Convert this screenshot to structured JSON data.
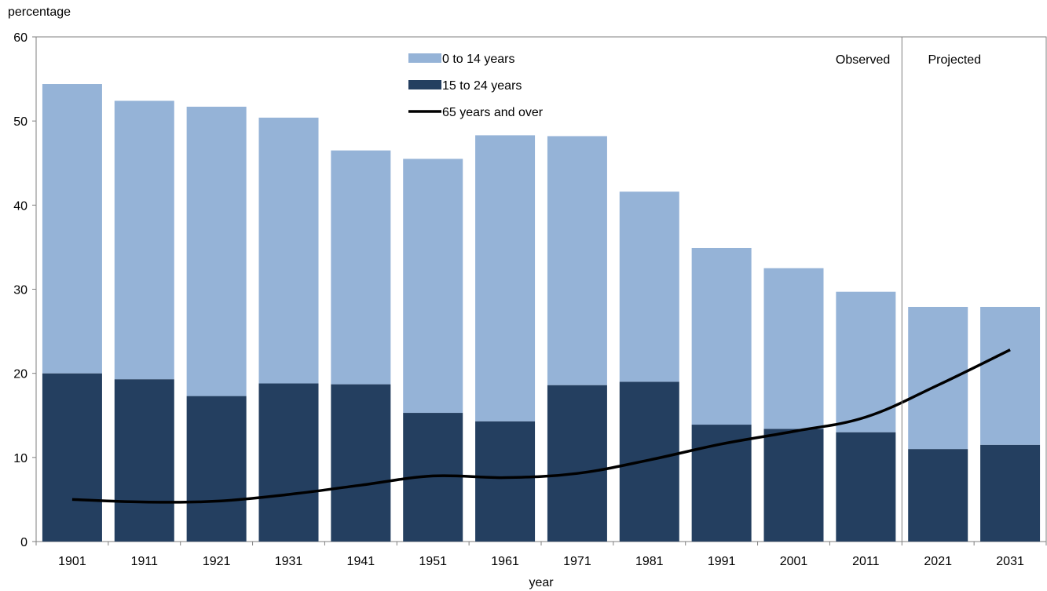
{
  "chart_data": {
    "type": "bar",
    "stacked": true,
    "categories": [
      "1901",
      "1911",
      "1921",
      "1931",
      "1941",
      "1951",
      "1961",
      "1971",
      "1981",
      "1991",
      "2001",
      "2011",
      "2021",
      "2031"
    ],
    "series": [
      {
        "name": "15 to 24 years",
        "kind": "bar",
        "color": "#243F60",
        "values": [
          20.0,
          19.3,
          17.3,
          18.8,
          18.7,
          15.3,
          14.3,
          18.6,
          19.0,
          13.9,
          13.4,
          13.0,
          11.0,
          11.5
        ]
      },
      {
        "name": "0 to 14 years",
        "kind": "bar",
        "color": "#95B3D7",
        "totals": [
          54.4,
          52.4,
          51.7,
          50.4,
          46.5,
          45.5,
          48.3,
          48.2,
          41.6,
          34.9,
          32.5,
          29.7,
          27.9,
          27.9
        ],
        "values": [
          34.4,
          33.1,
          34.4,
          31.6,
          27.8,
          30.2,
          34.0,
          29.6,
          22.6,
          21.0,
          19.1,
          16.7,
          16.9,
          16.4
        ]
      },
      {
        "name": "65 years and over",
        "kind": "line",
        "color": "#000000",
        "values": [
          5.0,
          4.7,
          4.8,
          5.6,
          6.7,
          7.8,
          7.6,
          8.1,
          9.7,
          11.6,
          13.1,
          14.8,
          18.6,
          22.8
        ]
      }
    ],
    "xlabel": "year",
    "ylabel": "percentage",
    "ylim": [
      0,
      60
    ],
    "yticks": [
      "0",
      "10",
      "20",
      "30",
      "40",
      "50",
      "60"
    ],
    "grid": false,
    "legend_position": "top-center",
    "legend_order": [
      "0 to 14 years",
      "15 to 24 years",
      "65 years and over"
    ],
    "annotations": [
      "Observed",
      "Projected"
    ],
    "divider_between": [
      "2011",
      "2021"
    ]
  }
}
